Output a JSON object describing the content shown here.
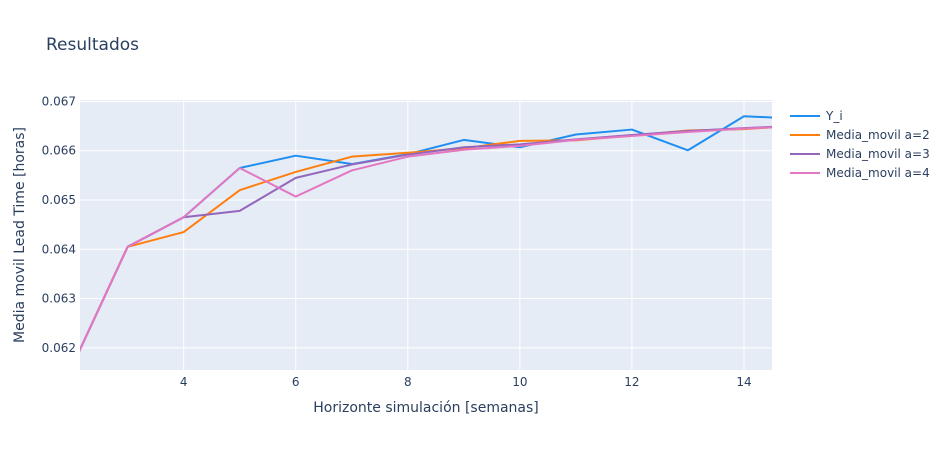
{
  "chart_data": {
    "type": "line",
    "title": "Resultados",
    "xlabel": "Horizonte simulación [semanas]",
    "ylabel": "Media movil Lead Time [horas]",
    "xlim": [
      2.15,
      14.5
    ],
    "ylim": [
      0.06155,
      0.06703
    ],
    "x_ticks": [
      4,
      6,
      8,
      10,
      12,
      14
    ],
    "y_ticks": [
      0.062,
      0.063,
      0.064,
      0.065,
      0.066,
      0.067
    ],
    "x_tick_labels": [
      "4",
      "6",
      "8",
      "10",
      "12",
      "14"
    ],
    "y_tick_labels": [
      "0.062",
      "0.063",
      "0.064",
      "0.065",
      "0.066",
      "0.067"
    ],
    "grid": true,
    "legend_position": "right",
    "plot_bgcolor": "#e5ecf6",
    "x": [
      2,
      3,
      4,
      5,
      6,
      7,
      8,
      9,
      10,
      11,
      12,
      13,
      14,
      15
    ],
    "series": [
      {
        "name": "Y_i",
        "color": "#1f8ef1",
        "values": [
          0.0616,
          0.06405,
          0.06465,
          0.06565,
          0.0659,
          0.06573,
          0.06593,
          0.06622,
          0.06607,
          0.06633,
          0.06643,
          0.06601,
          0.0667,
          0.06665
        ]
      },
      {
        "name": "Media_movil a=2",
        "color": "#ff7f0e",
        "values": [
          0.0616,
          0.06405,
          0.06435,
          0.0652,
          0.06557,
          0.06588,
          0.06596,
          0.06605,
          0.0662,
          0.06621,
          0.06631,
          0.06641,
          0.06644,
          0.06651
        ]
      },
      {
        "name": "Media_movil a=3",
        "color": "#9467bd",
        "values": [
          0.0616,
          0.06405,
          0.06465,
          0.06478,
          0.06545,
          0.06572,
          0.06592,
          0.06607,
          0.06613,
          0.06623,
          0.06632,
          0.0664,
          0.06646,
          0.06651
        ]
      },
      {
        "name": "Media_movil a=4",
        "color": "#e377c2",
        "values": [
          0.0616,
          0.06405,
          0.06465,
          0.06565,
          0.06507,
          0.0656,
          0.06588,
          0.06602,
          0.0661,
          0.06622,
          0.0663,
          0.06638,
          0.06645,
          0.0665
        ]
      }
    ]
  }
}
